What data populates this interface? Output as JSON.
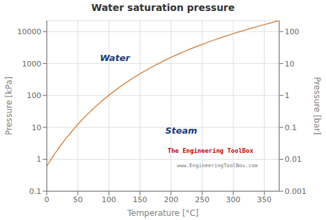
{
  "chart_data": {
    "type": "line",
    "title": "Water saturation pressure",
    "xlabel": "Temperature  [°C]",
    "ylabel": "Pressure  [kPa]",
    "y2label": "Pressure  [bar]",
    "x": [
      0,
      5,
      10,
      15,
      20,
      25,
      30,
      35,
      40,
      45,
      50,
      55,
      60,
      65,
      70,
      75,
      80,
      85,
      90,
      95,
      100,
      110,
      120,
      130,
      140,
      150,
      160,
      170,
      180,
      190,
      200,
      210,
      220,
      230,
      240,
      250,
      260,
      270,
      280,
      290,
      300,
      310,
      320,
      330,
      340,
      350,
      360,
      370,
      374
    ],
    "values": [
      0.6113,
      0.8726,
      1.2281,
      1.7057,
      2.3393,
      3.1693,
      4.247,
      5.6291,
      7.3849,
      9.5953,
      12.352,
      15.763,
      19.946,
      25.042,
      31.202,
      38.597,
      47.414,
      57.867,
      70.182,
      84.609,
      101.42,
      143.38,
      198.67,
      270.41,
      361.53,
      476.16,
      618.23,
      792.19,
      1002.8,
      1255.2,
      1554.9,
      1917.6,
      2319.6,
      2797.1,
      3347.0,
      3976.2,
      4692.3,
      5503.0,
      6417.2,
      7442.9,
      8587.9,
      9865.0,
      11274,
      12845,
      14601,
      16529,
      18651,
      21044,
      22090
    ],
    "color": "#d4884a",
    "xlim": [
      0,
      374
    ],
    "xticks": [
      0,
      50,
      100,
      150,
      200,
      250,
      300,
      350
    ],
    "ylim": [
      0.1,
      22090
    ],
    "yticks": [
      0.1,
      1,
      10,
      100,
      1000,
      10000
    ],
    "y2lim": [
      0.001,
      220.9
    ],
    "y2ticks": [
      0.001,
      0.01,
      0.1,
      1,
      10,
      100
    ],
    "log": "y",
    "grid": true,
    "annotations": [
      {
        "text": "Water",
        "x": 80,
        "y": 1500,
        "color": "#1a3a7a"
      },
      {
        "text": "Steam",
        "x": 185,
        "y": 8,
        "color": "#1a3a7a"
      },
      {
        "text": "The Engineering ToolBox",
        "color": "#cc0000"
      },
      {
        "text": "www.EngineeringToolBox.com",
        "color": "#777777"
      }
    ]
  }
}
